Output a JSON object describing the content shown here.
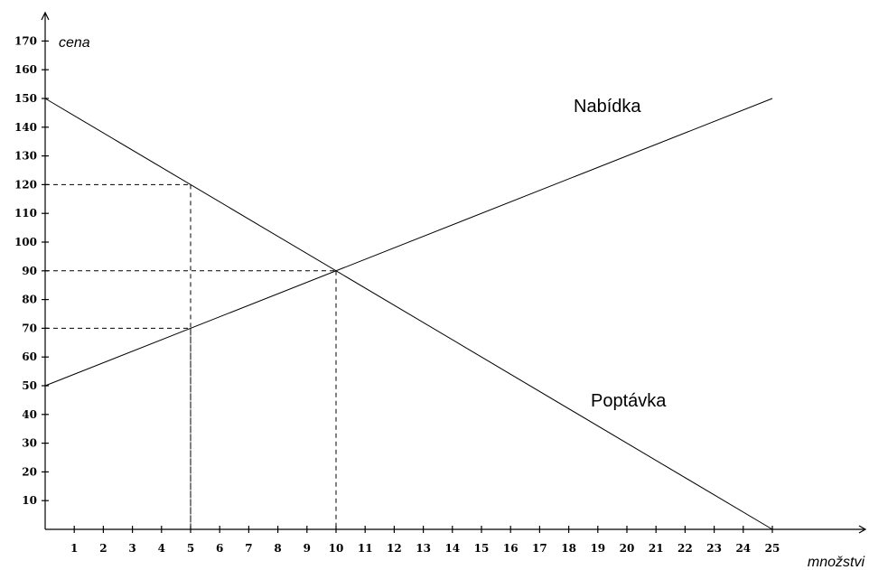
{
  "chart_data": {
    "type": "line",
    "title": "",
    "xlabel": "množstvi",
    "ylabel": "cena",
    "xlim": [
      0,
      25
    ],
    "ylim": [
      0,
      170
    ],
    "x_ticks": [
      1,
      2,
      3,
      4,
      5,
      6,
      7,
      8,
      9,
      10,
      11,
      12,
      13,
      14,
      15,
      16,
      17,
      18,
      19,
      20,
      21,
      22,
      23,
      24,
      25
    ],
    "y_ticks": [
      10,
      20,
      30,
      40,
      50,
      60,
      70,
      80,
      90,
      100,
      110,
      120,
      130,
      140,
      150,
      160,
      170
    ],
    "grid": false,
    "series": [
      {
        "name": "Nabídka",
        "x": [
          0,
          25
        ],
        "y": [
          50,
          150
        ]
      },
      {
        "name": "Poptávka",
        "x": [
          0,
          25
        ],
        "y": [
          150,
          0
        ]
      }
    ],
    "guides": [
      {
        "x": 5,
        "y": 120
      },
      {
        "x": 5,
        "y": 70
      },
      {
        "x": 10,
        "y": 90
      }
    ]
  }
}
